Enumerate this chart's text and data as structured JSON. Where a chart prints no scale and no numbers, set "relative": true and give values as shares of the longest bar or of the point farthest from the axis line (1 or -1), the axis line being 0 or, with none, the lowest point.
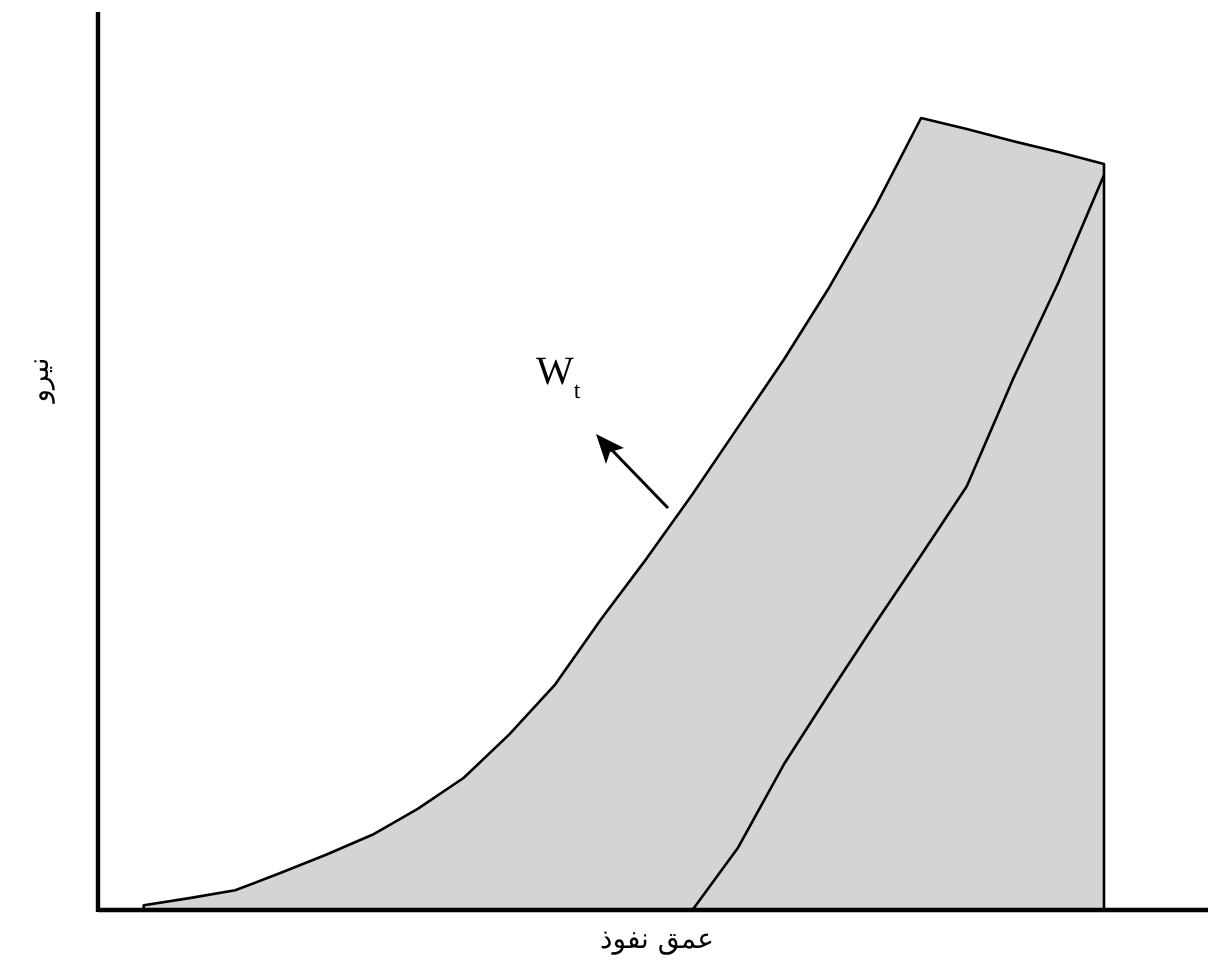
{
  "chart_data": {
    "type": "area",
    "relative": true,
    "xlabel": "عمق نفوذ",
    "ylabel": "نیرو",
    "categories": [
      null,
      null,
      null,
      null,
      null,
      null,
      null,
      null,
      null,
      null,
      null,
      null,
      null,
      null,
      null,
      null,
      null,
      null,
      null,
      null,
      null,
      null,
      null
    ],
    "series": [
      {
        "color": "#d3d4d6",
        "values": [
          null,
          0.006,
          0.015,
          0.025,
          0.047,
          0.07,
          0.095,
          0.128,
          0.167,
          0.222,
          0.285,
          0.367,
          0.444,
          0.525,
          0.61,
          0.695,
          0.787,
          0.888,
          1.0,
          0.986,
          0.971,
          0.957,
          0.942
        ]
      },
      {
        "type": "line",
        "color": "#000000",
        "values": [
          null,
          null,
          null,
          null,
          null,
          null,
          null,
          null,
          null,
          null,
          null,
          null,
          null,
          0,
          0.079,
          0.184,
          0.274,
          0.362,
          0.448,
          0.535,
          0.669,
          0.792,
          0.928
        ]
      }
    ],
    "annotations": [
      "W$_{t}$"
    ]
  }
}
